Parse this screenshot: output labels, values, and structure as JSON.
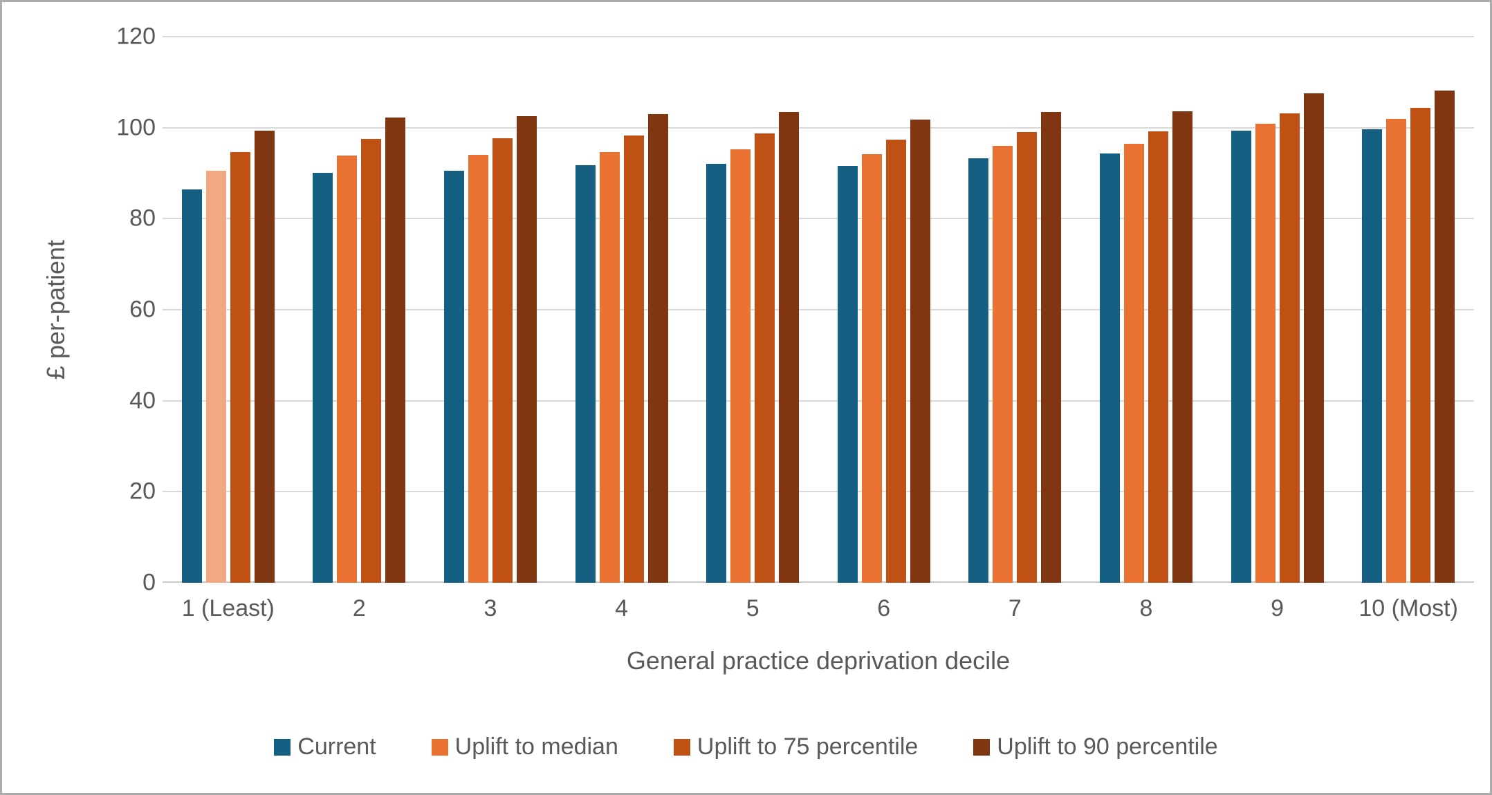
{
  "chart_data": {
    "type": "bar",
    "title": "",
    "xlabel": "General practice deprivation decile",
    "ylabel": "£ per-patient",
    "ylim": [
      0,
      120
    ],
    "yticks": [
      0,
      20,
      40,
      60,
      80,
      100,
      120
    ],
    "grid": true,
    "legend_position": "bottom",
    "categories": [
      "1 (Least)",
      "2",
      "3",
      "4",
      "5",
      "6",
      "7",
      "8",
      "9",
      "10 (Most)"
    ],
    "series": [
      {
        "name": "Current",
        "color": "#156082",
        "values": [
          86.5,
          90.1,
          90.6,
          91.7,
          92.0,
          91.6,
          93.2,
          94.4,
          99.4,
          99.7
        ]
      },
      {
        "name": "Uplift to median",
        "color": "#E97132",
        "values": [
          90.6,
          93.9,
          94.0,
          94.7,
          95.2,
          94.2,
          96.0,
          96.5,
          100.9,
          101.9
        ]
      },
      {
        "name": "Uplift to 75 percentile",
        "color": "#C05115",
        "values": [
          94.7,
          97.5,
          97.7,
          98.3,
          98.7,
          97.4,
          99.0,
          99.2,
          103.2,
          104.4
        ]
      },
      {
        "name": "Uplift to 90 percentile",
        "color": "#803610",
        "values": [
          99.4,
          102.3,
          102.6,
          103.0,
          103.4,
          101.8,
          103.5,
          103.6,
          107.6,
          108.1
        ]
      }
    ],
    "bar_color_overrides": [
      {
        "series_index": 1,
        "category_index": 0,
        "color": "#F2A983"
      }
    ],
    "colors": {
      "background": "#FFFFFF",
      "border": "#ABABAB",
      "gridline": "#D9D9D9",
      "axis_line": "#C9C9C9",
      "text": "#595959"
    }
  }
}
